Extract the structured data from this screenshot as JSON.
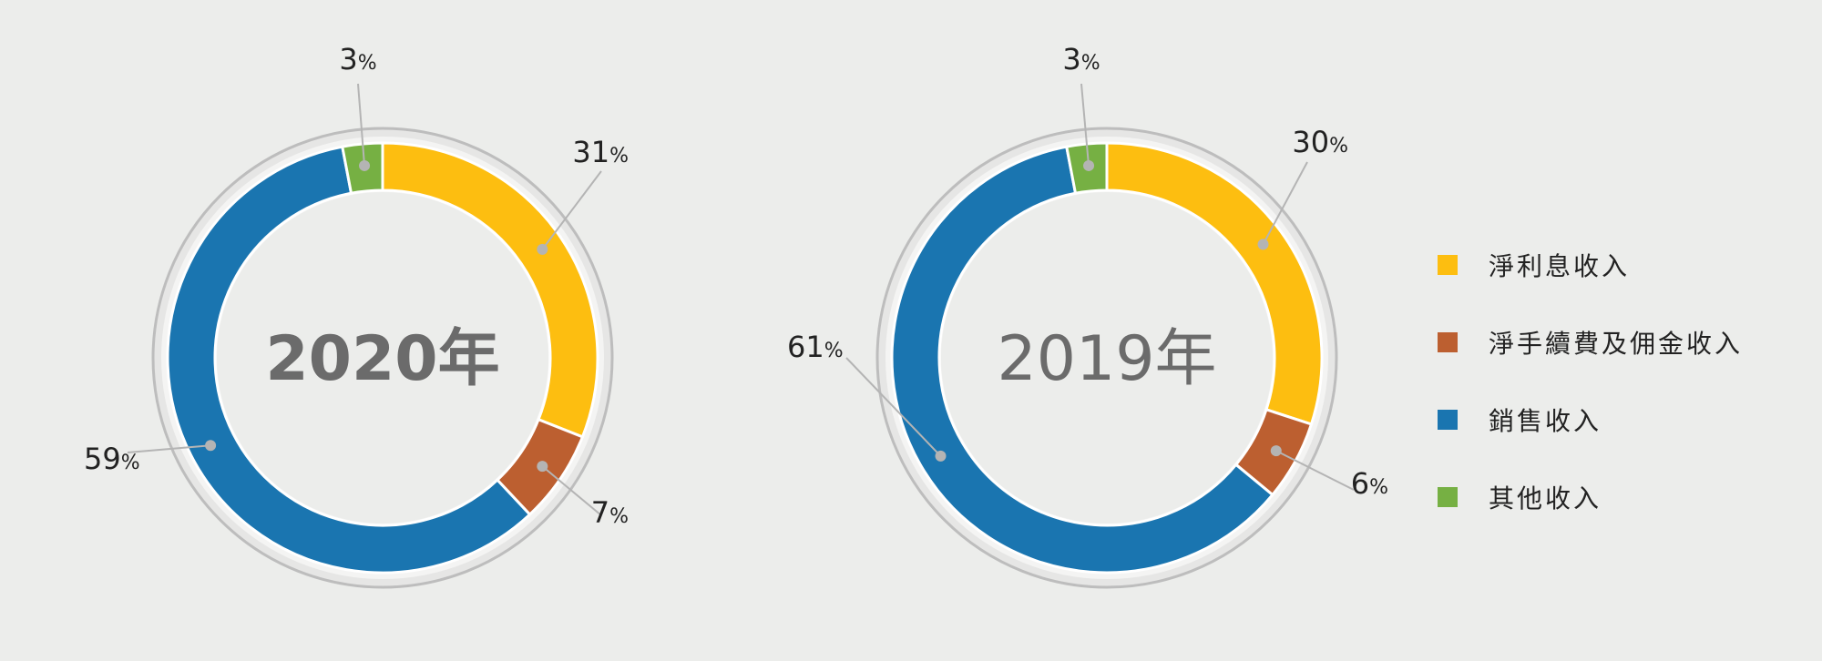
{
  "chart_data": [
    {
      "type": "pie",
      "title": "2020年",
      "categories": [
        "淨利息收入",
        "淨手續費及佣金收入",
        "銷售收入",
        "其他收入"
      ],
      "values": [
        31,
        7,
        59,
        3
      ],
      "value_labels": [
        "31",
        "7",
        "59",
        "3"
      ],
      "unit": "%"
    },
    {
      "type": "pie",
      "title": "2019年",
      "categories": [
        "淨利息收入",
        "淨手續費及佣金收入",
        "銷售收入",
        "其他收入"
      ],
      "values": [
        30,
        6,
        61,
        3
      ],
      "value_labels": [
        "30",
        "6",
        "61",
        "3"
      ],
      "unit": "%"
    }
  ],
  "legend": {
    "position": "right",
    "items": [
      {
        "label": "淨利息收入",
        "color": "#fdbe10"
      },
      {
        "label": "淨手續費及佣金收入",
        "color": "#bc5f30"
      },
      {
        "label": "銷售收入",
        "color": "#1a75b0"
      },
      {
        "label": "其他收入",
        "color": "#76b043"
      }
    ]
  },
  "colors": {
    "ring_border": "#bdbdbd",
    "ring_fill": "#e6e6e5",
    "leader": "#b4b4b4",
    "title_text": "#6b6b6b",
    "label_text": "#222222"
  }
}
